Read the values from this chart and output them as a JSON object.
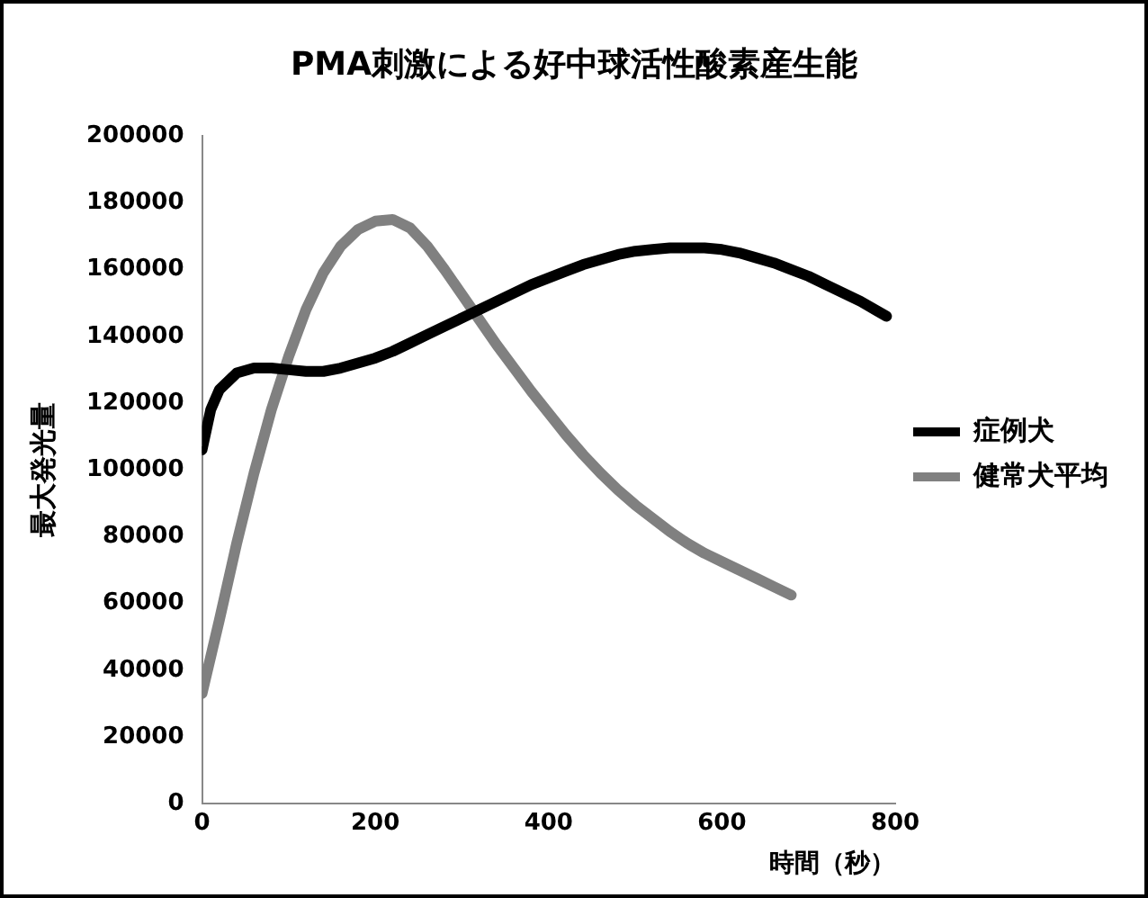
{
  "chart_data": {
    "type": "line",
    "title": "PMA刺激による好中球活性酸素産生能",
    "xlabel": "時間（秒）",
    "ylabel": "最大発光量",
    "xlim": [
      0,
      800
    ],
    "xticks": [
      0,
      200,
      400,
      600,
      800
    ],
    "ylim": [
      0,
      200000
    ],
    "yticks": [
      0,
      20000,
      40000,
      60000,
      80000,
      100000,
      120000,
      140000,
      160000,
      180000,
      200000
    ],
    "grid": false,
    "legend": "right",
    "series": [
      {
        "name": "症例犬",
        "color": "#000000",
        "marker": "circle",
        "x": [
          0,
          10,
          20,
          40,
          60,
          80,
          100,
          120,
          140,
          160,
          180,
          200,
          220,
          240,
          260,
          280,
          300,
          320,
          340,
          360,
          380,
          400,
          420,
          440,
          460,
          480,
          500,
          520,
          540,
          560,
          580,
          600,
          620,
          640,
          660,
          680,
          700,
          720,
          740,
          760,
          780,
          790
        ],
        "values": [
          106000,
          118000,
          124000,
          129000,
          130500,
          130500,
          130000,
          129500,
          129500,
          130500,
          132000,
          133500,
          135500,
          138000,
          140500,
          143000,
          145500,
          148000,
          150500,
          153000,
          155500,
          157500,
          159500,
          161500,
          163000,
          164500,
          165500,
          166000,
          166500,
          166500,
          166500,
          166000,
          165000,
          163500,
          162000,
          160000,
          158000,
          155500,
          153000,
          150500,
          147500,
          146000
        ]
      },
      {
        "name": "健常犬平均",
        "color": "#808080",
        "marker": "square",
        "x": [
          0,
          20,
          40,
          60,
          80,
          100,
          120,
          140,
          160,
          180,
          200,
          220,
          240,
          260,
          280,
          300,
          320,
          340,
          360,
          380,
          400,
          420,
          440,
          460,
          480,
          500,
          520,
          540,
          560,
          580,
          600,
          620,
          640,
          660,
          680
        ],
        "values": [
          33000,
          55000,
          78000,
          99000,
          118000,
          134000,
          148000,
          159000,
          167000,
          172000,
          174500,
          175000,
          172500,
          167000,
          160000,
          152500,
          145000,
          137500,
          130500,
          123500,
          117000,
          110500,
          104500,
          99000,
          94000,
          89500,
          85500,
          81500,
          78000,
          75000,
          72500,
          70000,
          67500,
          65000,
          62500
        ]
      }
    ]
  }
}
